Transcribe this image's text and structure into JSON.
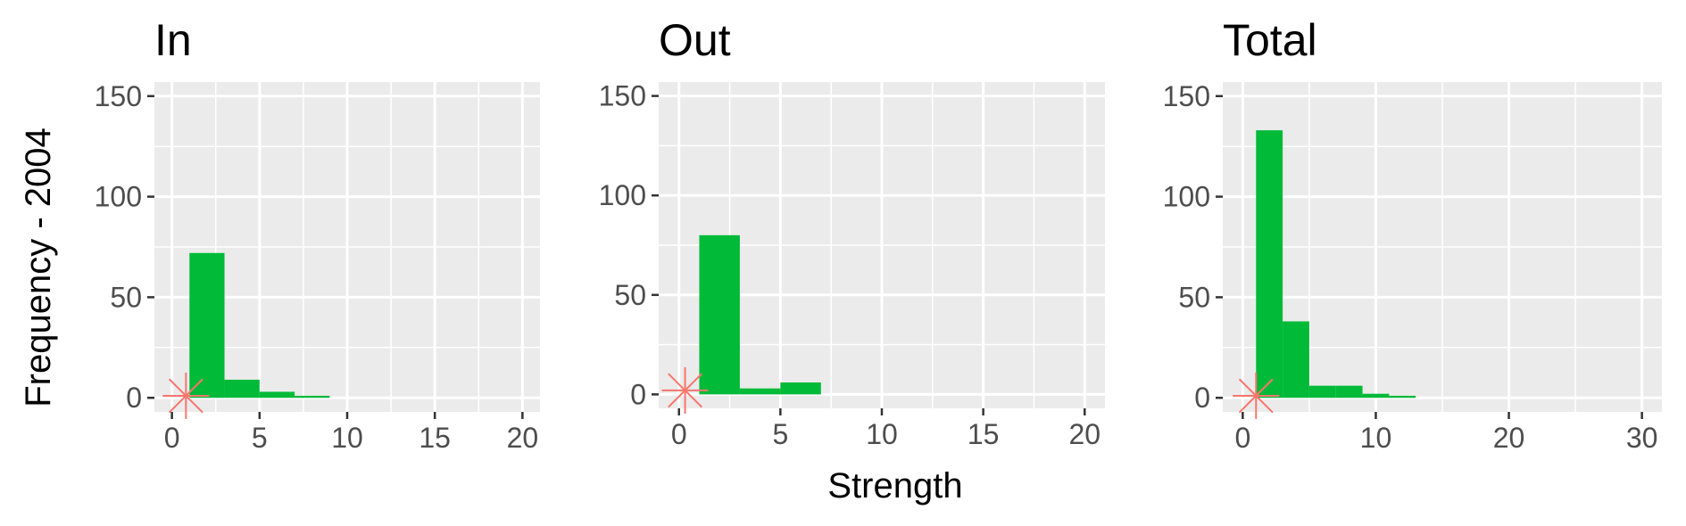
{
  "chart_data": {
    "type": "bar",
    "ylabel": "Frequency - 2004",
    "xlabel": "Strength",
    "colors": {
      "bar": "#00BA38",
      "marker": "#F8766D",
      "panel_bg": "#EBEBEB",
      "grid": "#FFFFFF"
    },
    "panels": [
      {
        "title": "In",
        "xlim": [
          -1,
          21
        ],
        "ylim": [
          -7,
          157
        ],
        "xticks": [
          0,
          5,
          10,
          15,
          20
        ],
        "yticks": [
          0,
          50,
          100,
          150
        ],
        "bins": [
          {
            "x0": 1,
            "x1": 3,
            "value": 72
          },
          {
            "x0": 3,
            "x1": 5,
            "value": 9
          },
          {
            "x0": 5,
            "x1": 7,
            "value": 3
          },
          {
            "x0": 7,
            "x1": 9,
            "value": 1
          }
        ],
        "marker": {
          "x": 0.8,
          "y": 1
        }
      },
      {
        "title": "Out",
        "xlim": [
          -1,
          21
        ],
        "ylim": [
          -7,
          157
        ],
        "xticks": [
          0,
          5,
          10,
          15,
          20
        ],
        "yticks": [
          0,
          50,
          100,
          150
        ],
        "bins": [
          {
            "x0": 1,
            "x1": 3,
            "value": 80
          },
          {
            "x0": 3,
            "x1": 5,
            "value": 3
          },
          {
            "x0": 5,
            "x1": 7,
            "value": 6
          }
        ],
        "marker": {
          "x": 0.3,
          "y": 2
        }
      },
      {
        "title": "Total",
        "xlim": [
          -1.5,
          31.5
        ],
        "ylim": [
          -7,
          157
        ],
        "xticks": [
          0,
          10,
          20,
          30
        ],
        "yticks": [
          0,
          50,
          100,
          150
        ],
        "bins": [
          {
            "x0": 1,
            "x1": 3,
            "value": 133
          },
          {
            "x0": 3,
            "x1": 5,
            "value": 38
          },
          {
            "x0": 5,
            "x1": 7,
            "value": 6
          },
          {
            "x0": 7,
            "x1": 9,
            "value": 6
          },
          {
            "x0": 9,
            "x1": 11,
            "value": 2
          },
          {
            "x0": 11,
            "x1": 13,
            "value": 1
          }
        ],
        "marker": {
          "x": 1,
          "y": 1
        }
      }
    ]
  }
}
